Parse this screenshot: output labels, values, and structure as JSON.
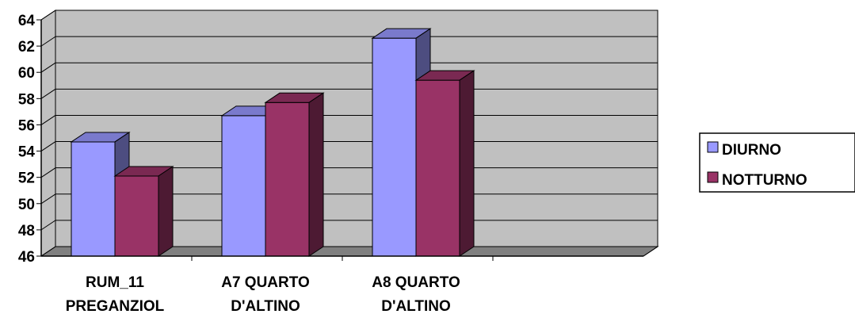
{
  "chart_data": {
    "type": "bar",
    "title": "",
    "xlabel": "",
    "ylabel": "",
    "categories": [
      [
        "RUM_11",
        "PREGANZIOL"
      ],
      [
        "A7 QUARTO",
        "D'ALTINO"
      ],
      [
        "A8 QUARTO",
        "D'ALTINO"
      ]
    ],
    "series": [
      {
        "name": "DIURNO",
        "values": [
          54.7,
          56.7,
          62.6
        ],
        "color": "#9999FF",
        "side_color": "#4D4D80",
        "top_color": "#7A7ACC"
      },
      {
        "name": "NOTTURNO",
        "values": [
          52.1,
          57.7,
          59.4
        ],
        "color": "#993366",
        "side_color": "#4D1A33",
        "top_color": "#7A2952"
      }
    ],
    "ylim": [
      46,
      64
    ],
    "yticks": [
      "46",
      "48",
      "50",
      "52",
      "54",
      "56",
      "58",
      "60",
      "62",
      "64"
    ],
    "grid": true,
    "legend": "right",
    "plot_colors": {
      "wall": "#C0C0C0",
      "floor": "#808080",
      "grid": "#000000"
    }
  }
}
